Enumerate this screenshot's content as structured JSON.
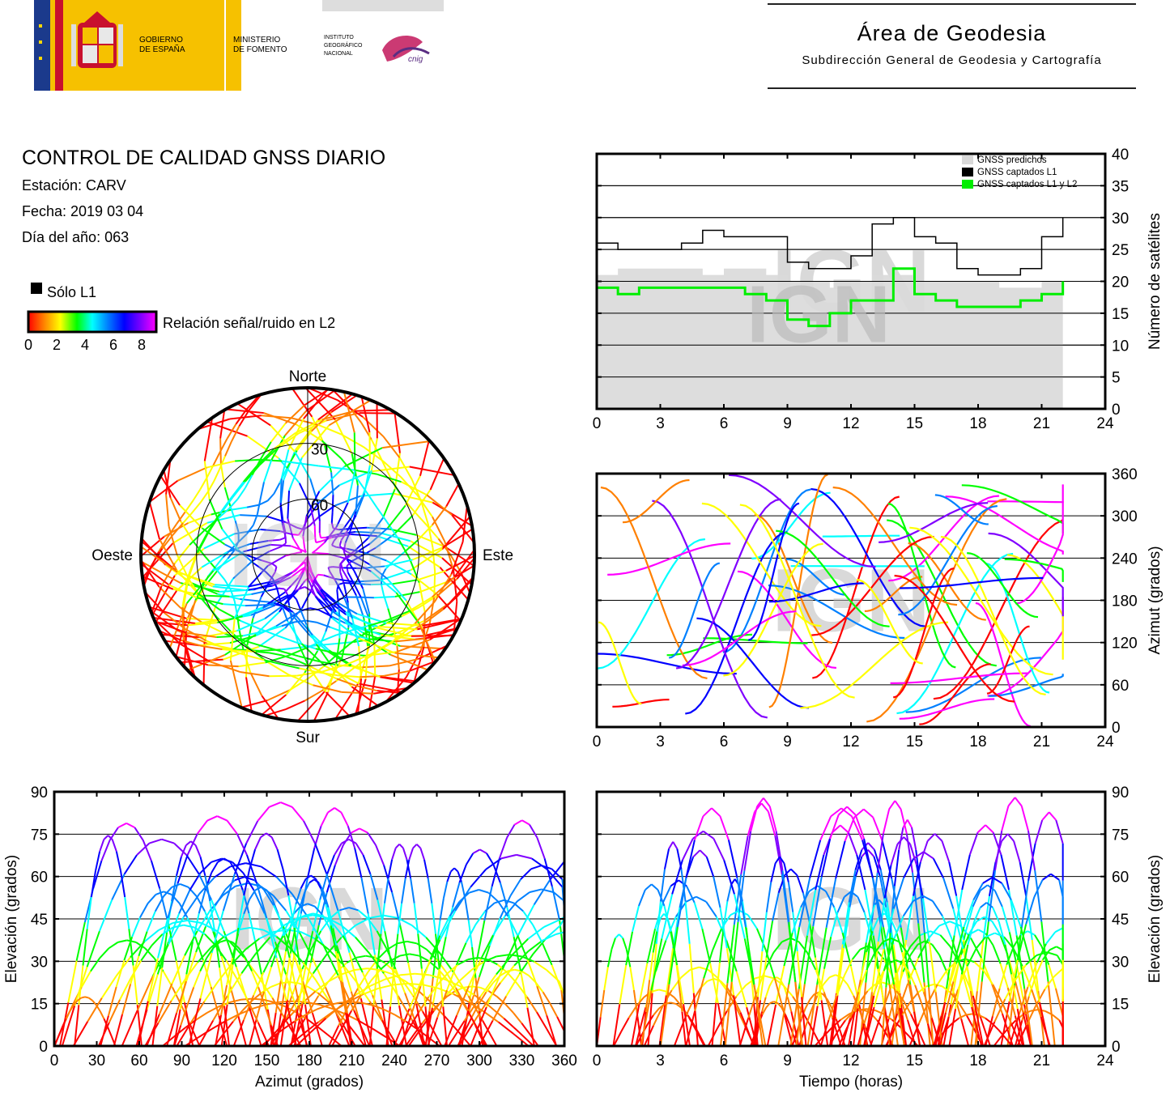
{
  "header": {
    "gov_line1": "GOBIERNO",
    "gov_line2": "DE ESPAÑA",
    "min_line1": "MINISTERIO",
    "min_line2": "DE FOMENTO",
    "ign_line1": "INSTITUTO",
    "ign_line2": "GEOGRÁFICO",
    "ign_line3": "NACIONAL",
    "cnig": "cnig",
    "area_title": "Área de Geodesia",
    "area_subtitle": "Subdirección General de Geodesia y Cartografía"
  },
  "report": {
    "title": "CONTROL DE CALIDAD GNSS DIARIO",
    "station": "Estación: CARV",
    "date": "Fecha: 2019 03 04",
    "doy": "Día del año: 063"
  },
  "legend": {
    "only_l1": "Sólo L1",
    "snr_label": "Relación señal/ruido en L2",
    "snr_ticks": [
      "0",
      "2",
      "4",
      "6",
      "8"
    ]
  },
  "watermark": "IGN",
  "colors": {
    "predicted": "#d9d9d9",
    "l1": "#000000",
    "l1l2": "#00ee00",
    "snr_scale": [
      "#ff0000",
      "#ff8000",
      "#ffff00",
      "#00ff00",
      "#00ffff",
      "#0080ff",
      "#0000ff",
      "#8000ff",
      "#ff00ff"
    ]
  },
  "chart_data": [
    {
      "type": "area",
      "id": "satellites",
      "ylabel": "Número de satélites",
      "xlim": [
        0,
        24
      ],
      "ylim": [
        0,
        40
      ],
      "xticks": [
        0,
        3,
        6,
        9,
        12,
        15,
        18,
        21,
        24
      ],
      "yticks": [
        0,
        5,
        10,
        15,
        20,
        25,
        30,
        35,
        40
      ],
      "grid": true,
      "legend_position": "top-right",
      "legend": [
        "GNSS predichos",
        "GNSS captados L1",
        "GNSS captados L1 y L2"
      ],
      "x": [
        0,
        1,
        2,
        3,
        4,
        5,
        6,
        7,
        8,
        9,
        10,
        11,
        12,
        13,
        14,
        15,
        16,
        17,
        18,
        19,
        20,
        21,
        22
      ],
      "series": [
        {
          "name": "GNSS predichos",
          "values": [
            21,
            22,
            22,
            22,
            22,
            21,
            22,
            22,
            21,
            20,
            20,
            19,
            20,
            21,
            21,
            20,
            20,
            20,
            20,
            19,
            19,
            20,
            22
          ]
        },
        {
          "name": "GNSS captados L1",
          "values": [
            26,
            25,
            25,
            25,
            26,
            28,
            27,
            27,
            27,
            23,
            22,
            22,
            24,
            29,
            30,
            27,
            26,
            22,
            21,
            21,
            22,
            27,
            30
          ]
        },
        {
          "name": "GNSS captados L1 y L2",
          "values": [
            19,
            18,
            19,
            19,
            19,
            19,
            19,
            18,
            17,
            14,
            13,
            15,
            17,
            17,
            22,
            18,
            17,
            16,
            16,
            16,
            17,
            18,
            20
          ]
        }
      ]
    },
    {
      "type": "scatter",
      "id": "skyplot",
      "labels": {
        "north": "Norte",
        "south": "Sur",
        "west": "Oeste",
        "east": "Este"
      },
      "rings": [
        "30",
        "60"
      ]
    },
    {
      "type": "scatter",
      "id": "azimuth_time",
      "xlabel": "",
      "ylabel": "Azimut (grados)",
      "xlim": [
        0,
        24
      ],
      "ylim": [
        0,
        360
      ],
      "xticks": [
        0,
        3,
        6,
        9,
        12,
        15,
        18,
        21,
        24
      ],
      "yticks": [
        0,
        60,
        120,
        180,
        240,
        300,
        360
      ],
      "grid": true
    },
    {
      "type": "scatter",
      "id": "elevation_azimuth",
      "xlabel": "Azimut (grados)",
      "ylabel": "Elevación (grados)",
      "xlim": [
        0,
        360
      ],
      "ylim": [
        0,
        90
      ],
      "xticks": [
        0,
        30,
        60,
        90,
        120,
        150,
        180,
        210,
        240,
        270,
        300,
        330,
        360
      ],
      "yticks": [
        0,
        15,
        30,
        45,
        60,
        75,
        90
      ],
      "grid": true
    },
    {
      "type": "scatter",
      "id": "elevation_time",
      "xlabel": "Tiempo (horas)",
      "ylabel": "Elevación (grados)",
      "xlim": [
        0,
        24
      ],
      "ylim": [
        0,
        90
      ],
      "xticks": [
        0,
        3,
        6,
        9,
        12,
        15,
        18,
        21,
        24
      ],
      "yticks": [
        0,
        15,
        30,
        45,
        60,
        75,
        90
      ],
      "grid": true
    }
  ]
}
